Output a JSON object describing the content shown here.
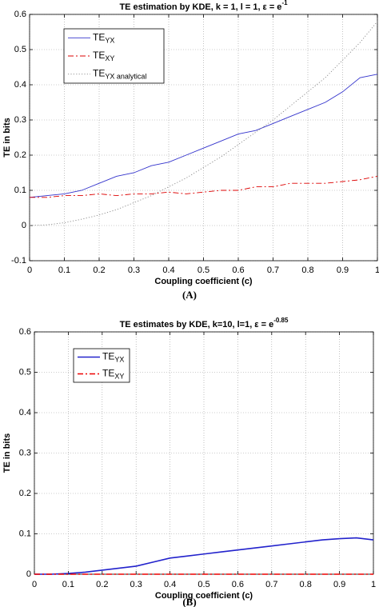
{
  "chart_data": [
    {
      "type": "line",
      "title": {
        "text": "TE estimation by KDE, k = 1, l = 1, ε = e",
        "superscript": "-1"
      },
      "xlabel": "Coupling coefficient (c)",
      "ylabel": "TE in bits",
      "panel_label": "(A)",
      "xlim": [
        0,
        1
      ],
      "ylim": [
        -0.1,
        0.6
      ],
      "xticks": [
        0,
        0.1,
        0.2,
        0.3,
        0.4,
        0.5,
        0.6,
        0.7,
        0.8,
        0.9,
        1
      ],
      "yticks": [
        -0.1,
        0,
        0.1,
        0.2,
        0.3,
        0.4,
        0.5,
        0.6
      ],
      "grid": true,
      "legend": "upper left",
      "x": [
        0,
        0.05,
        0.1,
        0.15,
        0.2,
        0.25,
        0.3,
        0.35,
        0.4,
        0.45,
        0.5,
        0.55,
        0.6,
        0.65,
        0.7,
        0.75,
        0.8,
        0.85,
        0.9,
        0.95,
        1
      ],
      "series": [
        {
          "name": "TE",
          "subscript": "YX",
          "color": "#3333cc",
          "dash": "solid",
          "values": [
            0.08,
            0.085,
            0.09,
            0.1,
            0.12,
            0.14,
            0.15,
            0.17,
            0.18,
            0.2,
            0.22,
            0.24,
            0.26,
            0.27,
            0.29,
            0.31,
            0.33,
            0.35,
            0.38,
            0.42,
            0.43
          ]
        },
        {
          "name": "TE",
          "subscript": "XY",
          "color": "#dd0000",
          "dash": "dashdot",
          "values": [
            0.08,
            0.08,
            0.085,
            0.085,
            0.09,
            0.085,
            0.09,
            0.09,
            0.095,
            0.09,
            0.095,
            0.1,
            0.1,
            0.11,
            0.11,
            0.12,
            0.12,
            0.12,
            0.125,
            0.13,
            0.14
          ]
        },
        {
          "name": "TE",
          "subscript": "YX analytical",
          "color": "#888888",
          "dash": "dotted",
          "values": [
            0,
            0.002,
            0.008,
            0.018,
            0.03,
            0.045,
            0.065,
            0.085,
            0.11,
            0.135,
            0.165,
            0.195,
            0.23,
            0.265,
            0.3,
            0.34,
            0.38,
            0.42,
            0.47,
            0.52,
            0.58
          ]
        }
      ]
    },
    {
      "type": "line",
      "title": {
        "text": "TE estimates by KDE, k=10, l=1, ε = e",
        "superscript": "-0.85"
      },
      "xlabel": "Coupling coefficient (c)",
      "ylabel": "TE in bits",
      "panel_label": "(B)",
      "xlim": [
        0,
        1
      ],
      "ylim": [
        0,
        0.6
      ],
      "xticks": [
        0,
        0.1,
        0.2,
        0.3,
        0.4,
        0.5,
        0.6,
        0.7,
        0.8,
        0.9,
        1
      ],
      "yticks": [
        0,
        0.1,
        0.2,
        0.3,
        0.4,
        0.5,
        0.6
      ],
      "grid": true,
      "legend": "upper left",
      "x": [
        0,
        0.05,
        0.1,
        0.15,
        0.2,
        0.25,
        0.3,
        0.35,
        0.4,
        0.45,
        0.5,
        0.55,
        0.6,
        0.65,
        0.7,
        0.75,
        0.8,
        0.85,
        0.9,
        0.95,
        1
      ],
      "series": [
        {
          "name": "TE",
          "subscript": "YX",
          "color": "#2222cc",
          "dash": "solid",
          "values": [
            0,
            0,
            0.002,
            0.005,
            0.01,
            0.015,
            0.02,
            0.03,
            0.04,
            0.045,
            0.05,
            0.055,
            0.06,
            0.065,
            0.07,
            0.075,
            0.08,
            0.085,
            0.088,
            0.09,
            0.085
          ]
        },
        {
          "name": "TE",
          "subscript": "XY",
          "color": "#ee0000",
          "dash": "dashdot",
          "values": [
            0,
            0,
            0,
            0,
            0,
            0,
            0,
            0,
            0,
            0,
            0,
            0,
            0,
            0,
            0,
            0,
            0,
            0,
            0,
            0,
            0
          ]
        }
      ]
    }
  ]
}
